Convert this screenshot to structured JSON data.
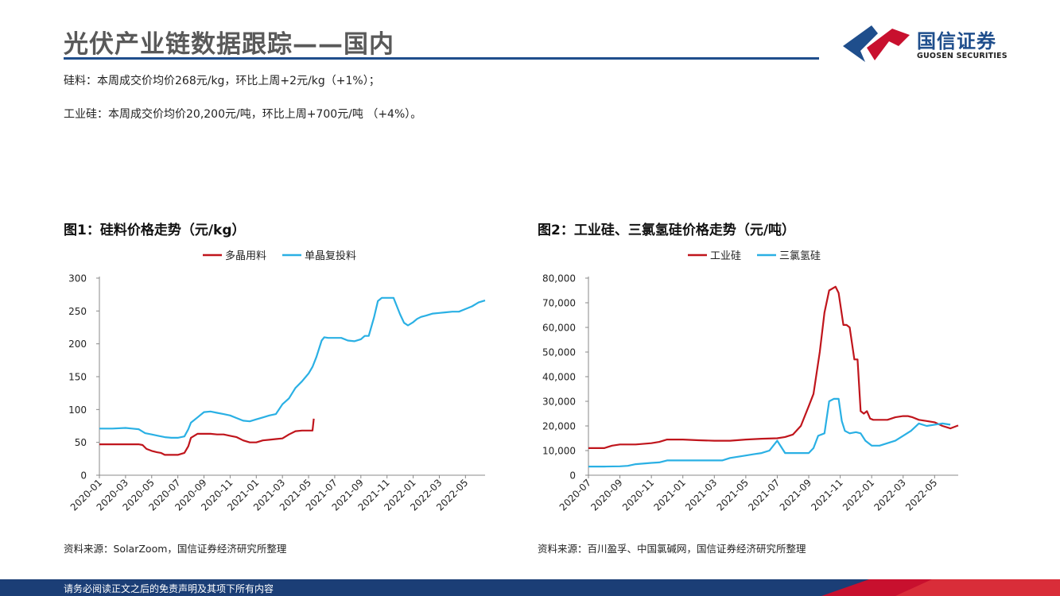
{
  "header": {
    "title": "光伏产业链数据跟踪——国内",
    "logo_cn": "国信证券",
    "logo_en": "GUOSEN SECURITIES"
  },
  "text_lines": [
    "硅料：本周成交价均价268元/kg，环比上周+2元/kg（+1%）；",
    "工业硅：本周成交价均价20,200元/吨，环比上周+700元/吨 （+4%）。"
  ],
  "figure1": {
    "title": "图1：硅料价格走势（元/kg）",
    "source": "资料来源：SolarZoom，国信证券经济研究所整理"
  },
  "figure2": {
    "title": "图2：工业硅、三氯氢硅价格走势（元/吨）",
    "source": "资料来源：百川盈孚、中国氯碱网，国信证券经济研究所整理"
  },
  "footer": {
    "text": "请务必阅读正文之后的免责声明及其项下所有内容"
  },
  "colors": {
    "red": "#c0151c",
    "blue": "#2ab0e4",
    "navy": "#1f4e8c"
  },
  "chart_data": [
    {
      "type": "line",
      "title": "图1：硅料价格走势（元/kg）",
      "xlabel": "",
      "ylabel": "",
      "x_start": "2020-01",
      "x_end": "2022-06",
      "xlim": [
        0,
        29.5
      ],
      "ylim": [
        0,
        300
      ],
      "yticks": [
        "0",
        "50",
        "100",
        "150",
        "200",
        "250",
        "300"
      ],
      "ytick_values": [
        0,
        50,
        100,
        150,
        200,
        250,
        300
      ],
      "xticks": [
        "2020-01",
        "2020-03",
        "2020-05",
        "2020-07",
        "2020-09",
        "2020-11",
        "2021-01",
        "2021-03",
        "2021-05",
        "2021-07",
        "2021-09",
        "2021-11",
        "2022-01",
        "2022-03",
        "2022-05"
      ],
      "xtick_values": [
        0,
        2,
        4,
        6,
        8,
        10,
        12,
        14,
        16,
        18,
        20,
        22,
        24,
        26,
        28
      ],
      "legend": "top",
      "series": [
        {
          "name": "多晶用料",
          "color": "#c0151c",
          "x": [
            0,
            1,
            2,
            3,
            3.3,
            3.6,
            4,
            4.4,
            4.7,
            5,
            5.5,
            6,
            6.5,
            6.8,
            7,
            7.5,
            8,
            8.5,
            9,
            9.5,
            10,
            10.5,
            11,
            11.5,
            12,
            12.5,
            13,
            13.5,
            14,
            14.5,
            15,
            15.5,
            16,
            16.3,
            16.4
          ],
          "y": [
            47,
            47,
            47,
            47,
            46,
            40,
            37,
            35,
            34,
            31,
            31,
            31,
            34,
            44,
            57,
            63,
            63,
            63,
            62,
            62,
            60,
            58,
            53,
            50,
            50,
            53,
            54,
            55,
            56,
            62,
            67,
            68,
            68,
            68,
            86
          ]
        },
        {
          "name": "单晶复投料",
          "color": "#2ab0e4",
          "x": [
            0,
            1,
            2,
            2.5,
            3,
            3.5,
            4,
            4.5,
            5,
            5.5,
            6,
            6.5,
            6.8,
            7,
            7.5,
            8,
            8.5,
            9,
            9.5,
            10,
            10.5,
            11,
            11.5,
            12,
            12.5,
            13,
            13.5,
            14,
            14.5,
            15,
            15.5,
            16,
            16.3,
            16.6,
            17,
            17.2,
            17.5,
            18,
            18.5,
            19,
            19.5,
            20,
            20.3,
            20.6,
            21,
            21.3,
            21.6,
            22,
            22.5,
            23,
            23.3,
            23.6,
            24,
            24.3,
            24.6,
            25,
            25.5,
            26,
            26.5,
            27,
            27.5,
            28,
            28.5,
            29,
            29.5
          ],
          "y": [
            71,
            71,
            72,
            71,
            70,
            64,
            62,
            60,
            58,
            57,
            57,
            59,
            70,
            80,
            88,
            96,
            97,
            95,
            93,
            91,
            87,
            83,
            82,
            85,
            88,
            91,
            93,
            108,
            117,
            133,
            143,
            155,
            165,
            180,
            205,
            210,
            209,
            209,
            209,
            205,
            204,
            207,
            212,
            212,
            240,
            265,
            270,
            270,
            270,
            245,
            232,
            228,
            233,
            238,
            241,
            243,
            246,
            247,
            248,
            249,
            249,
            253,
            257,
            263,
            266
          ]
        }
      ]
    },
    {
      "type": "line",
      "title": "图2：工业硅、三氯氢硅价格走势（元/吨）",
      "xlabel": "",
      "ylabel": "",
      "x_start": "2020-07",
      "x_end": "2022-06",
      "xlim": [
        0,
        23.5
      ],
      "ylim": [
        0,
        80000
      ],
      "yticks": [
        "0",
        "10,000",
        "20,000",
        "30,000",
        "40,000",
        "50,000",
        "60,000",
        "70,000",
        "80,000"
      ],
      "ytick_values": [
        0,
        10000,
        20000,
        30000,
        40000,
        50000,
        60000,
        70000,
        80000
      ],
      "xticks": [
        "2020-07",
        "2020-09",
        "2020-11",
        "2021-01",
        "2021-03",
        "2021-05",
        "2021-07",
        "2021-09",
        "2021-11",
        "2022-01",
        "2022-03",
        "2022-05"
      ],
      "xtick_values": [
        0,
        2,
        4,
        6,
        8,
        10,
        12,
        14,
        16,
        18,
        20,
        22
      ],
      "legend": "top",
      "series": [
        {
          "name": "工业硅",
          "color": "#c0151c",
          "x": [
            0,
            1,
            1.5,
            2,
            3,
            4,
            4.5,
            5,
            6,
            7,
            8,
            9,
            10,
            11,
            12,
            12.5,
            13,
            13.5,
            14,
            14.3,
            14.7,
            15,
            15.3,
            15.7,
            15.9,
            16.2,
            16.4,
            16.6,
            16.9,
            17.1,
            17.3,
            17.5,
            17.7,
            17.9,
            18.1,
            18.5,
            19,
            19.5,
            20,
            20.3,
            20.6,
            21,
            21.5,
            22,
            22.5,
            23,
            23.5
          ],
          "y": [
            11000,
            11000,
            12000,
            12500,
            12500,
            13000,
            13500,
            14500,
            14500,
            14200,
            14000,
            14000,
            14500,
            14800,
            15000,
            15500,
            16500,
            20000,
            28000,
            33000,
            50000,
            66000,
            75000,
            76500,
            74000,
            61000,
            61000,
            60000,
            47000,
            47000,
            26000,
            25000,
            26000,
            23000,
            22500,
            22500,
            22500,
            23500,
            24000,
            24000,
            23500,
            22500,
            22000,
            21500,
            20000,
            19000,
            20200
          ]
        },
        {
          "name": "三氯氢硅",
          "color": "#2ab0e4",
          "x": [
            0,
            1,
            2,
            2.5,
            3,
            4,
            4.5,
            5,
            6,
            7,
            8,
            8.5,
            9,
            10,
            10.5,
            11,
            11.5,
            12,
            12.5,
            13,
            13.5,
            14,
            14.3,
            14.6,
            15,
            15.3,
            15.6,
            15.9,
            16.1,
            16.3,
            16.6,
            17,
            17.3,
            17.6,
            18,
            18.5,
            19,
            19.5,
            20,
            20.5,
            21,
            21.5,
            22,
            22.5,
            23
          ],
          "y": [
            3500,
            3500,
            3600,
            3800,
            4500,
            5000,
            5200,
            6000,
            6000,
            6000,
            6000,
            6000,
            7000,
            8000,
            8500,
            9000,
            10000,
            14000,
            9000,
            9000,
            9000,
            9000,
            11000,
            16000,
            17000,
            30000,
            31000,
            31000,
            22000,
            18000,
            17000,
            17500,
            17000,
            14000,
            12000,
            12000,
            13000,
            14000,
            16000,
            18000,
            21000,
            20000,
            20500,
            21000,
            20500
          ]
        }
      ]
    }
  ]
}
